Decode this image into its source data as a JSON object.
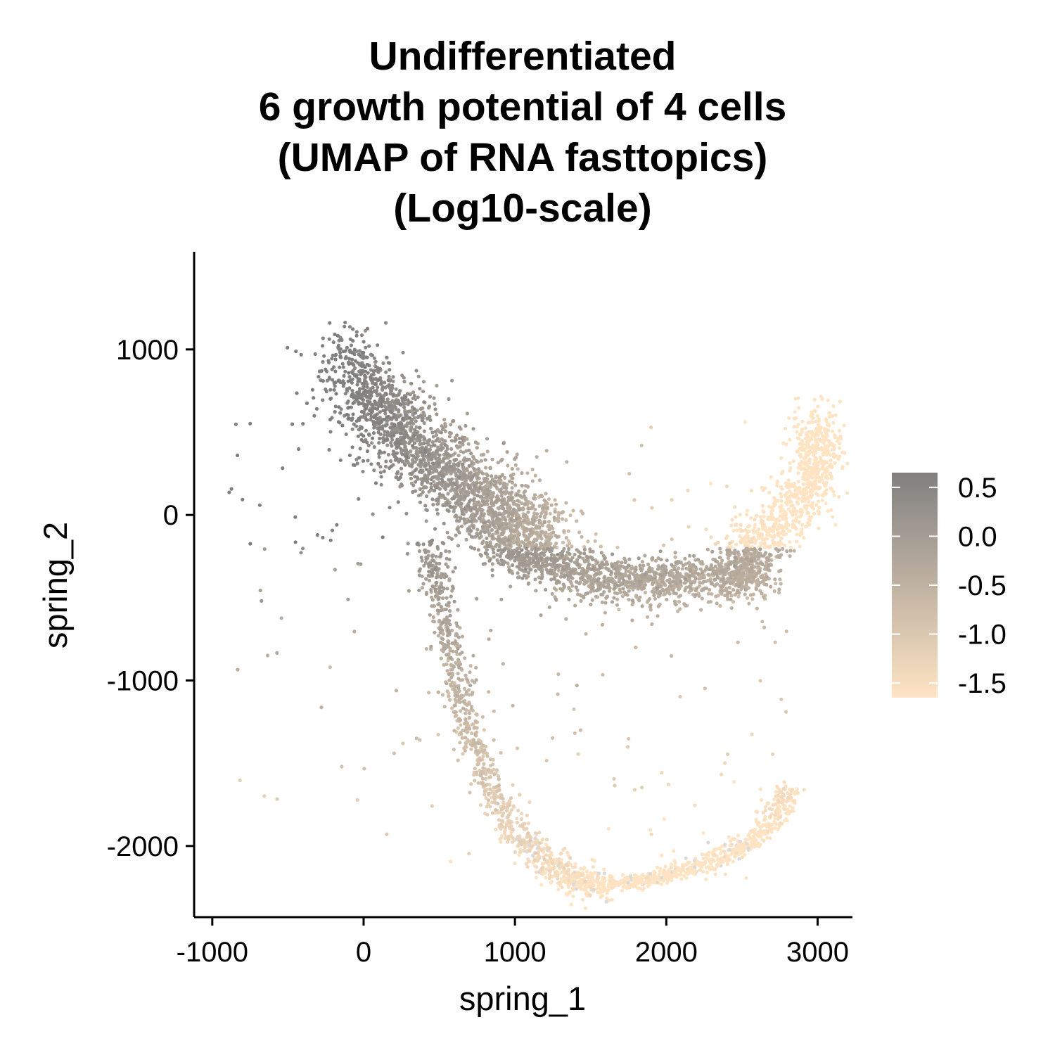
{
  "chart_data": {
    "type": "scatter",
    "title_lines": [
      "Undifferentiated",
      "6 growth potential of 4 cells",
      "(UMAP of RNA fasttopics)",
      "(Log10-scale)"
    ],
    "xlabel": "spring_1",
    "ylabel": "spring_2",
    "xlim": [
      -1120,
      3230
    ],
    "ylim": [
      -2430,
      1590
    ],
    "x_ticks": [
      -1000,
      0,
      1000,
      2000,
      3000
    ],
    "x_tick_labels": [
      "-1000",
      "0",
      "1000",
      "2000",
      "3000"
    ],
    "y_ticks": [
      -2000,
      -1000,
      0,
      1000
    ],
    "y_tick_labels": [
      "-2000",
      "-1000",
      "0",
      "1000"
    ],
    "grid": false,
    "legend": {
      "placement": "right",
      "type": "colorbar",
      "range": [
        -1.65,
        0.65
      ],
      "ticks": [
        0.5,
        0.0,
        -0.5,
        -1.0,
        -1.5
      ],
      "tick_labels": [
        "0.5",
        "0.0",
        "-0.5",
        "-1.0",
        "-1.5"
      ]
    },
    "colors": {
      "high": "#808080",
      "low": "#FFE4C4",
      "na": "#DADADA"
    },
    "point_count_estimate": 15000,
    "clusters": [
      {
        "name": "upper-left dense cluster",
        "center": [
          100,
          700
        ],
        "value_range": [
          0.3,
          0.6
        ]
      },
      {
        "name": "left sparse spread",
        "center": [
          -300,
          300
        ],
        "value_range": [
          0.0,
          0.5
        ]
      },
      {
        "name": "middle arm",
        "center": [
          1300,
          -350
        ],
        "value_range": [
          -1.0,
          -0.3
        ]
      },
      {
        "name": "right arm",
        "center": [
          2700,
          200
        ],
        "value_range": [
          -1.6,
          -1.2
        ]
      },
      {
        "name": "lower descending branch",
        "center": [
          700,
          -1300
        ],
        "value_range": [
          -1.3,
          -0.6
        ]
      },
      {
        "name": "bottom curve",
        "center": [
          1800,
          -2150
        ],
        "value_range": [
          -1.6,
          -1.4
        ]
      }
    ],
    "series_paths": [
      {
        "name": "main body",
        "x": [
          -150,
          0,
          150,
          300,
          450,
          600,
          750,
          900,
          1050,
          1200
        ],
        "y": [
          950,
          780,
          620,
          460,
          340,
          220,
          110,
          20,
          -70,
          -150
        ]
      },
      {
        "name": "middle arm",
        "x": [
          900,
          1200,
          1500,
          1800,
          2100,
          2400,
          2600
        ],
        "y": [
          -200,
          -280,
          -360,
          -400,
          -390,
          -380,
          -360
        ]
      },
      {
        "name": "right arm",
        "x": [
          2400,
          2600,
          2800,
          2950,
          3000,
          3000
        ],
        "y": [
          -330,
          -200,
          0,
          150,
          350,
          550
        ]
      },
      {
        "name": "lower branch",
        "x": [
          450,
          500,
          560,
          640,
          720,
          820,
          950,
          1100,
          1250,
          1400,
          1550
        ],
        "y": [
          -200,
          -450,
          -750,
          -1050,
          -1350,
          -1600,
          -1850,
          -2020,
          -2130,
          -2200,
          -2230
        ]
      },
      {
        "name": "bottom curve",
        "x": [
          1400,
          1600,
          1800,
          2000,
          2200,
          2400,
          2600,
          2750,
          2800
        ],
        "y": [
          -2220,
          -2230,
          -2210,
          -2170,
          -2120,
          -2050,
          -1950,
          -1800,
          -1650
        ]
      }
    ]
  }
}
